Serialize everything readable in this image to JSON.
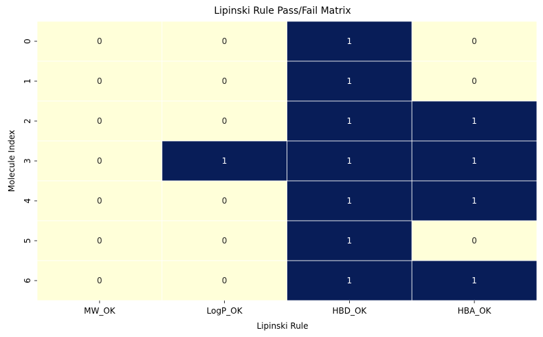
{
  "chart_data": {
    "type": "heatmap",
    "title": "Lipinski Rule Pass/Fail Matrix",
    "xlabel": "Lipinski Rule",
    "ylabel": "Molecule Index",
    "x_categories": [
      "MW_OK",
      "LogP_OK",
      "HBD_OK",
      "HBA_OK"
    ],
    "y_categories": [
      "0",
      "1",
      "2",
      "3",
      "4",
      "5",
      "6"
    ],
    "values": [
      [
        0,
        0,
        1,
        0
      ],
      [
        0,
        0,
        1,
        0
      ],
      [
        0,
        0,
        1,
        1
      ],
      [
        0,
        1,
        1,
        1
      ],
      [
        0,
        0,
        1,
        1
      ],
      [
        0,
        0,
        1,
        0
      ],
      [
        0,
        0,
        1,
        1
      ]
    ],
    "colormap": "YlGnBu",
    "color_low": "#ffffd9",
    "color_high": "#081d58",
    "annotation_color_low": "#262626",
    "annotation_color_high": "#ffffff",
    "colorbar": false,
    "grid": false
  }
}
